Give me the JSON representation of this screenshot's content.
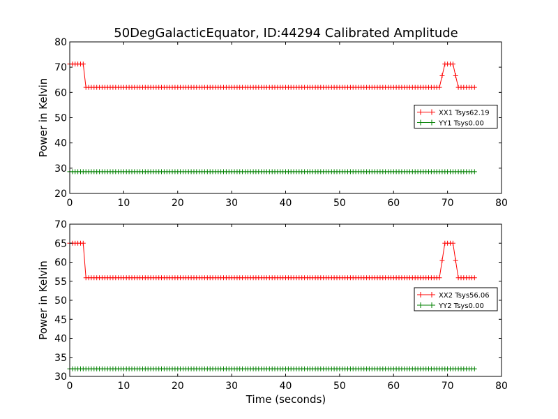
{
  "title": "50DegGalacticEquator, ID:44294 Calibrated Amplitude",
  "xlabel": "Time (seconds)",
  "colors": {
    "XX": "#ff0000",
    "YY": "#008000"
  },
  "chart_data": [
    {
      "type": "line",
      "ylabel": "Power in Kelvin",
      "xlim": [
        0,
        80
      ],
      "ylim": [
        20,
        80
      ],
      "xticks": [
        "0",
        "10",
        "20",
        "30",
        "40",
        "50",
        "60",
        "70",
        "80"
      ],
      "yticks": [
        "20",
        "30",
        "40",
        "50",
        "60",
        "70",
        "80"
      ],
      "legend_position": "center-right",
      "series": [
        {
          "name": "XX1 Tsys62.19",
          "color": "#ff0000",
          "profile": {
            "x_start": 0,
            "x_end": 75,
            "step": 0.5,
            "high": 71.2,
            "low": 62.0,
            "segments": [
              [
                0,
                2.5,
                "high"
              ],
              [
                2.5,
                3.0,
                "ramp_down"
              ],
              [
                3.0,
                68.5,
                "low"
              ],
              [
                68.5,
                69.5,
                "ramp_up"
              ],
              [
                69.5,
                71.0,
                "high"
              ],
              [
                71.0,
                72.0,
                "ramp_down"
              ],
              [
                72.0,
                75,
                "low"
              ]
            ]
          }
        },
        {
          "name": "YY1 Tsys0.00",
          "color": "#008000",
          "profile": {
            "x_start": 0,
            "x_end": 75,
            "step": 0.5,
            "high": 28.6,
            "low": 28.6,
            "segments": [
              [
                0,
                75,
                "low"
              ]
            ]
          }
        }
      ]
    },
    {
      "type": "line",
      "ylabel": "Power in Kelvin",
      "xlim": [
        0,
        80
      ],
      "ylim": [
        30,
        70
      ],
      "xticks": [
        "0",
        "10",
        "20",
        "30",
        "40",
        "50",
        "60",
        "70",
        "80"
      ],
      "yticks": [
        "30",
        "35",
        "40",
        "45",
        "50",
        "55",
        "60",
        "65",
        "70"
      ],
      "legend_position": "center-right",
      "series": [
        {
          "name": "XX2 Tsys56.06",
          "color": "#ff0000",
          "profile": {
            "x_start": 0,
            "x_end": 75,
            "step": 0.5,
            "high": 65.0,
            "low": 55.9,
            "segments": [
              [
                0,
                2.5,
                "high"
              ],
              [
                2.5,
                3.0,
                "ramp_down"
              ],
              [
                3.0,
                68.5,
                "low"
              ],
              [
                68.5,
                69.5,
                "ramp_up"
              ],
              [
                69.5,
                71.0,
                "high"
              ],
              [
                71.0,
                72.0,
                "ramp_down"
              ],
              [
                72.0,
                75,
                "low"
              ]
            ]
          }
        },
        {
          "name": "YY2 Tsys0.00",
          "color": "#008000",
          "profile": {
            "x_start": 0,
            "x_end": 75,
            "step": 0.5,
            "high": 32.0,
            "low": 32.0,
            "segments": [
              [
                0,
                75,
                "low"
              ]
            ]
          }
        }
      ]
    }
  ]
}
